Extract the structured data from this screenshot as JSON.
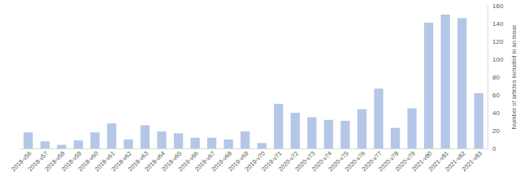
{
  "chart_data": {
    "type": "bar",
    "categories": [
      "2018-v56",
      "2018-v57",
      "2018-v58",
      "2018-v59",
      "2018-v60",
      "2018-v61",
      "2018-v62",
      "2018-v63",
      "2018-v64",
      "2018-v65",
      "2019-v66",
      "2019-v67",
      "2019-v68",
      "2019-v69",
      "2019-v70",
      "2019-v71",
      "2020-v72",
      "2020-v73",
      "2020-v74",
      "2020-v75",
      "2020-v76",
      "2020-v77",
      "2020-v78",
      "2020-v79",
      "2021-v80",
      "2021-v81",
      "2021-v82",
      "2021-v83"
    ],
    "values": [
      18,
      8,
      4,
      9,
      18,
      28,
      10,
      26,
      19,
      17,
      12,
      12,
      10,
      19,
      6,
      50,
      40,
      35,
      32,
      31,
      44,
      67,
      23,
      45,
      141,
      150,
      146,
      62
    ],
    "color": "#b4c7e7",
    "ylabel": "Number of articles included in an issue",
    "ylim": [
      0,
      160
    ],
    "yticks": [
      0,
      20,
      40,
      60,
      80,
      100,
      120,
      140,
      160
    ],
    "grid": false
  }
}
